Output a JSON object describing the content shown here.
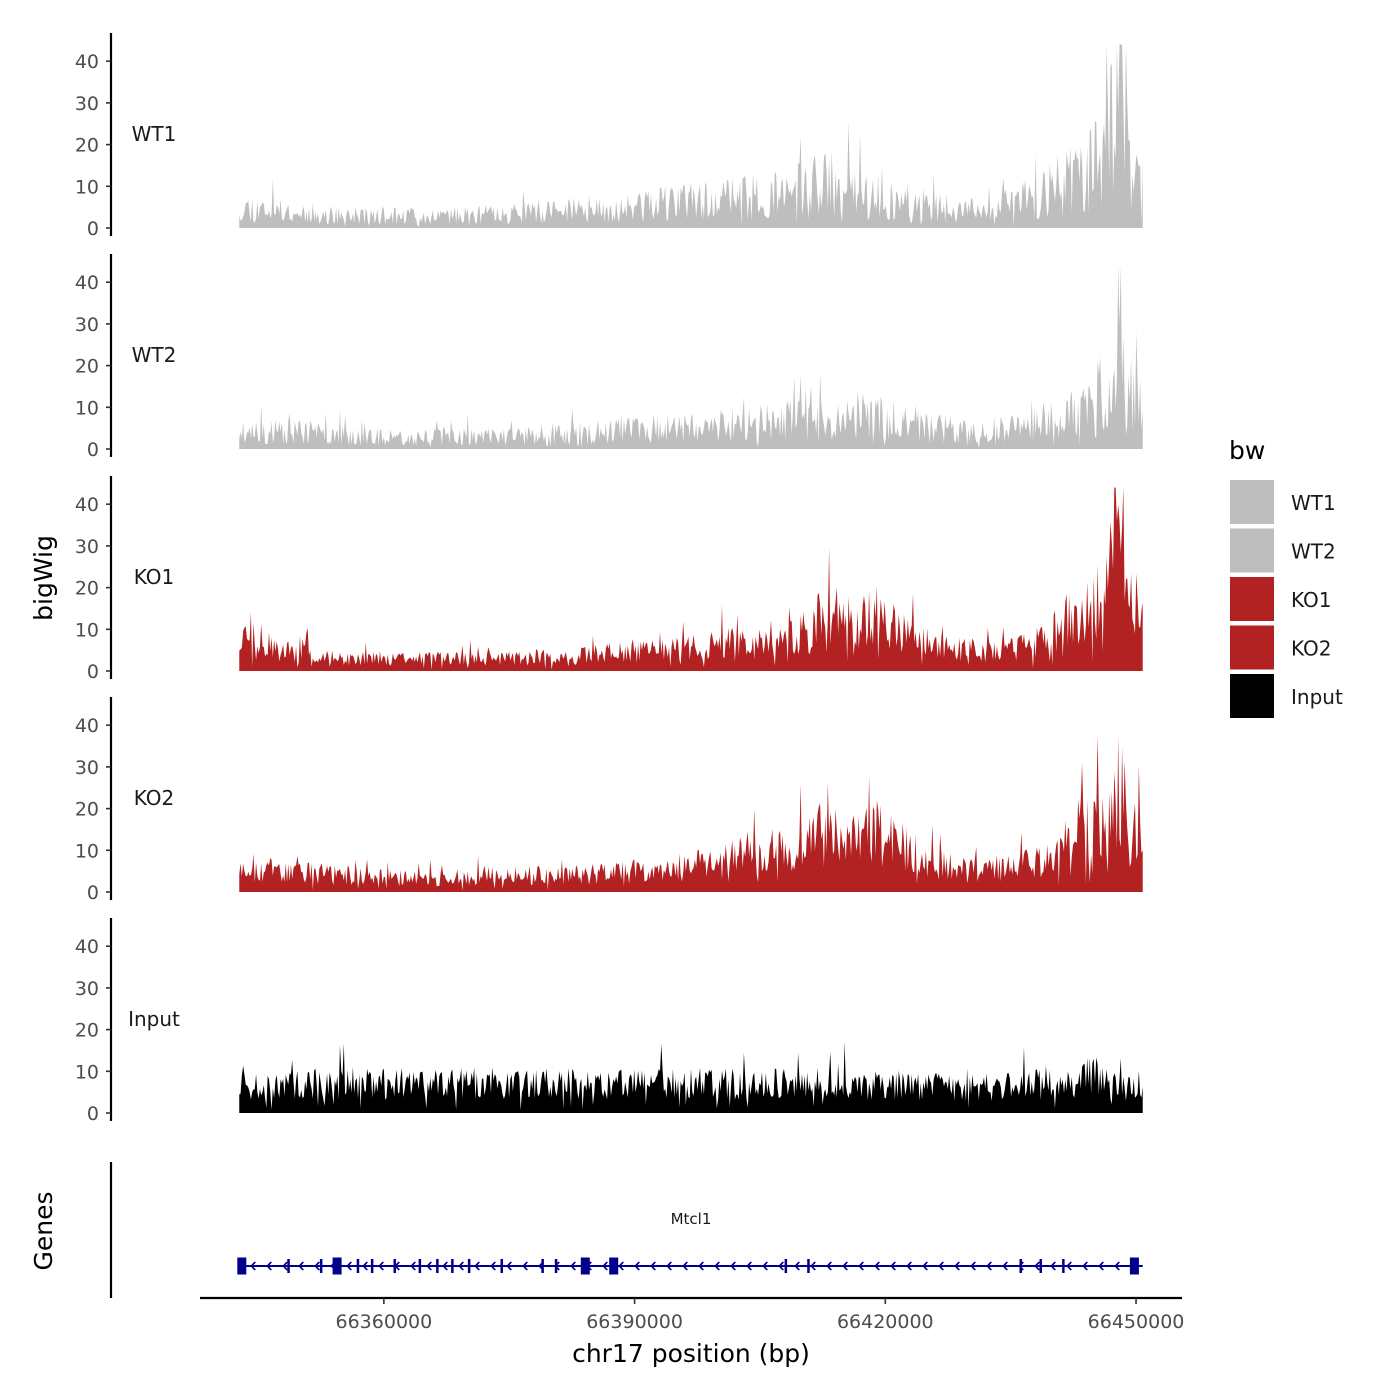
{
  "chart_data": {
    "type": "area",
    "title": "",
    "chromosome": "chr17",
    "xlabel": "chr17 position (bp)",
    "ylabel": "bigWig",
    "genes_label": "Genes",
    "xlim": [
      66338000,
      66455500
    ],
    "data_xrange": [
      66342700,
      66450800
    ],
    "x_ticks": [
      66360000,
      66390000,
      66420000,
      66450000
    ],
    "x_tick_labels": [
      "66360000",
      "66390000",
      "66420000",
      "66450000"
    ],
    "ylim": [
      0,
      45
    ],
    "y_ticks": [
      0,
      10,
      20,
      30,
      40
    ],
    "y_tick_labels": [
      "0",
      "10",
      "20",
      "30",
      "40"
    ],
    "legend": {
      "title": "bw",
      "position": "right",
      "entries": [
        {
          "label": "WT1",
          "color": "#bebebe"
        },
        {
          "label": "WT2",
          "color": "#bebebe"
        },
        {
          "label": "KO1",
          "color": "#b22222"
        },
        {
          "label": "KO2",
          "color": "#b22222"
        },
        {
          "label": "Input",
          "color": "#000000"
        }
      ]
    },
    "series": [
      {
        "name": "WT1",
        "color": "#bebebe",
        "seed": 11,
        "noise": 0.75,
        "profile": [
          [
            66342700,
            5
          ],
          [
            66348000,
            4
          ],
          [
            66355000,
            3
          ],
          [
            66362000,
            3
          ],
          [
            66370000,
            3
          ],
          [
            66380000,
            4
          ],
          [
            66390000,
            5
          ],
          [
            66400000,
            7
          ],
          [
            66408000,
            8
          ],
          [
            66413000,
            11
          ],
          [
            66418000,
            8
          ],
          [
            66426000,
            5
          ],
          [
            66432000,
            4
          ],
          [
            66437000,
            7
          ],
          [
            66442000,
            11
          ],
          [
            66446000,
            17
          ],
          [
            66447200,
            25
          ],
          [
            66448000,
            38
          ],
          [
            66448700,
            20
          ],
          [
            66449500,
            14
          ],
          [
            66450800,
            12
          ]
        ]
      },
      {
        "name": "WT2",
        "color": "#bebebe",
        "seed": 23,
        "noise": 0.75,
        "profile": [
          [
            66342700,
            4
          ],
          [
            66350000,
            4
          ],
          [
            66358000,
            3
          ],
          [
            66366000,
            3
          ],
          [
            66375000,
            3
          ],
          [
            66385000,
            4
          ],
          [
            66395000,
            5
          ],
          [
            66403000,
            6
          ],
          [
            66410000,
            7
          ],
          [
            66417000,
            8
          ],
          [
            66424000,
            6
          ],
          [
            66430000,
            4
          ],
          [
            66436000,
            5
          ],
          [
            66442000,
            8
          ],
          [
            66446000,
            13
          ],
          [
            66447500,
            22
          ],
          [
            66448000,
            30
          ],
          [
            66448800,
            16
          ],
          [
            66450800,
            9
          ]
        ]
      },
      {
        "name": "KO1",
        "color": "#b22222",
        "seed": 37,
        "noise": 0.6,
        "profile": [
          [
            66342700,
            7
          ],
          [
            66344000,
            9
          ],
          [
            66347000,
            5
          ],
          [
            66355000,
            3
          ],
          [
            66365000,
            3
          ],
          [
            66375000,
            3
          ],
          [
            66385000,
            4
          ],
          [
            66395000,
            5
          ],
          [
            66403000,
            7
          ],
          [
            66407000,
            6
          ],
          [
            66411000,
            10
          ],
          [
            66414000,
            17
          ],
          [
            66416000,
            12
          ],
          [
            66419000,
            13
          ],
          [
            66424000,
            7
          ],
          [
            66428000,
            5
          ],
          [
            66433000,
            5
          ],
          [
            66438000,
            7
          ],
          [
            66442000,
            12
          ],
          [
            66446000,
            17
          ],
          [
            66447500,
            28
          ],
          [
            66448300,
            33
          ],
          [
            66449200,
            16
          ],
          [
            66450800,
            14
          ]
        ]
      },
      {
        "name": "KO2",
        "color": "#b22222",
        "seed": 53,
        "noise": 0.6,
        "profile": [
          [
            66342700,
            6
          ],
          [
            66347000,
            5
          ],
          [
            66355000,
            4
          ],
          [
            66365000,
            3
          ],
          [
            66372000,
            4
          ],
          [
            66382000,
            4
          ],
          [
            66392000,
            5
          ],
          [
            66400000,
            7
          ],
          [
            66405000,
            10
          ],
          [
            66409000,
            9
          ],
          [
            66413000,
            15
          ],
          [
            66415000,
            11
          ],
          [
            66418000,
            15
          ],
          [
            66421000,
            12
          ],
          [
            66425000,
            7
          ],
          [
            66430000,
            5
          ],
          [
            66436000,
            6
          ],
          [
            66440000,
            8
          ],
          [
            66444000,
            16
          ],
          [
            66447000,
            20
          ],
          [
            66448000,
            27
          ],
          [
            66449200,
            15
          ],
          [
            66450800,
            14
          ]
        ]
      },
      {
        "name": "Input",
        "color": "#000000",
        "seed": 71,
        "noise": 0.55,
        "profile": [
          [
            66342700,
            6
          ],
          [
            66355000,
            7
          ],
          [
            66370000,
            7
          ],
          [
            66385000,
            7
          ],
          [
            66400000,
            7
          ],
          [
            66415000,
            7
          ],
          [
            66430000,
            6
          ],
          [
            66440000,
            7
          ],
          [
            66445000,
            9
          ],
          [
            66448000,
            6
          ],
          [
            66450800,
            5
          ]
        ]
      }
    ],
    "gene": {
      "name": "Mtcl1",
      "strand": "-",
      "color": "#00008b",
      "start": 66342700,
      "end": 66450800,
      "exons": [
        66343000,
        66348600,
        66352500,
        66354400,
        66356900,
        66358600,
        66361300,
        66364300,
        66366400,
        66368200,
        66370200,
        66374100,
        66379000,
        66380600,
        66384100,
        66387500,
        66408100,
        66410800,
        66436200,
        66438600,
        66441300,
        66449800
      ]
    }
  }
}
